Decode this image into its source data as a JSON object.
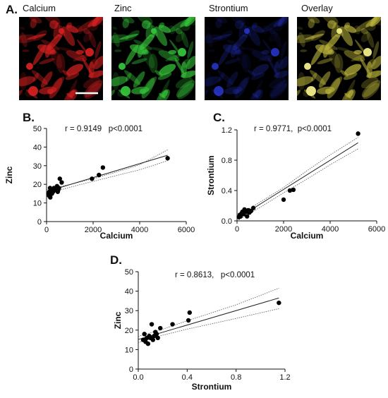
{
  "panels": {
    "a": {
      "letter": "A.",
      "labels": [
        "Calcium",
        "Zinc",
        "Strontium",
        "Overlay"
      ],
      "colors": [
        "#d42020",
        "#35c23a",
        "#2a3be0",
        "#b9b23a"
      ]
    },
    "b": {
      "letter": "B."
    },
    "c": {
      "letter": "C."
    },
    "d": {
      "letter": "D."
    }
  },
  "chart_data": [
    {
      "id": "B",
      "type": "scatter",
      "xlabel": "Calcium",
      "ylabel": "Zinc",
      "annotation": "r = 0.9149   p<0.0001",
      "xlim": [
        0,
        6000
      ],
      "ylim": [
        0,
        50
      ],
      "xticks": [
        0,
        2000,
        4000,
        6000
      ],
      "yticks": [
        0,
        10,
        20,
        30,
        40,
        50
      ],
      "xtick_labels": [
        "0",
        "2000",
        "4000",
        "6000"
      ],
      "ytick_labels": [
        "0",
        "10",
        "20",
        "30",
        "40",
        "50"
      ],
      "points": [
        [
          80,
          15
        ],
        [
          100,
          14
        ],
        [
          120,
          16
        ],
        [
          150,
          18
        ],
        [
          160,
          13
        ],
        [
          200,
          17
        ],
        [
          230,
          15
        ],
        [
          280,
          16
        ],
        [
          320,
          18
        ],
        [
          400,
          17
        ],
        [
          450,
          19
        ],
        [
          480,
          16
        ],
        [
          500,
          17
        ],
        [
          530,
          18
        ],
        [
          570,
          23
        ],
        [
          650,
          21
        ],
        [
          1950,
          23
        ],
        [
          2250,
          25
        ],
        [
          2420,
          29
        ],
        [
          5200,
          34
        ]
      ],
      "fit": {
        "x": [
          0,
          5200
        ],
        "y": [
          16.1,
          35.6
        ]
      },
      "ci_upper": {
        "x": [
          0,
          1000,
          2000,
          3000,
          4000,
          5200
        ],
        "y": [
          17.2,
          19.9,
          23.0,
          26.6,
          30.5,
          38.5
        ]
      },
      "ci_lower": {
        "x": [
          0,
          1000,
          2000,
          3000,
          4000,
          5200
        ],
        "y": [
          15.0,
          18.4,
          21.6,
          24.7,
          27.8,
          32.7
        ]
      }
    },
    {
      "id": "C",
      "type": "scatter",
      "xlabel": "Calcium",
      "ylabel": "Strontium",
      "annotation": "r = 0.9771,  p<0.0001",
      "xlim": [
        0,
        6000
      ],
      "ylim": [
        0,
        1.2
      ],
      "xticks": [
        0,
        2000,
        4000,
        6000
      ],
      "yticks": [
        0.0,
        0.4,
        0.8,
        1.2
      ],
      "xtick_labels": [
        "0",
        "2000",
        "4000",
        "6000"
      ],
      "ytick_labels": [
        "0.0",
        "0.4",
        "0.8",
        "1.2"
      ],
      "points": [
        [
          80,
          0.05
        ],
        [
          120,
          0.08
        ],
        [
          150,
          0.06
        ],
        [
          200,
          0.1
        ],
        [
          230,
          0.12
        ],
        [
          280,
          0.09
        ],
        [
          320,
          0.15
        ],
        [
          400,
          0.12
        ],
        [
          430,
          0.06
        ],
        [
          480,
          0.14
        ],
        [
          530,
          0.11
        ],
        [
          600,
          0.13
        ],
        [
          700,
          0.17
        ],
        [
          2000,
          0.28
        ],
        [
          2270,
          0.4
        ],
        [
          2420,
          0.41
        ],
        [
          5200,
          1.15
        ]
      ],
      "fit": {
        "x": [
          0,
          5200
        ],
        "y": [
          0.03,
          1.03
        ]
      },
      "ci_upper": {
        "x": [
          0,
          1000,
          2000,
          3000,
          4000,
          5200
        ],
        "y": [
          0.06,
          0.25,
          0.44,
          0.66,
          0.87,
          1.1
        ]
      },
      "ci_lower": {
        "x": [
          0,
          1000,
          2000,
          3000,
          4000,
          5200
        ],
        "y": [
          0.0,
          0.18,
          0.37,
          0.55,
          0.74,
          0.95
        ]
      }
    },
    {
      "id": "D",
      "type": "scatter",
      "xlabel": "Strontium",
      "ylabel": "Zinc",
      "annotation": "r = 0.8613,   p<0.0001",
      "xlim": [
        0,
        1.2
      ],
      "ylim": [
        0,
        50
      ],
      "xticks": [
        0.0,
        0.4,
        0.8,
        1.2
      ],
      "yticks": [
        0,
        10,
        20,
        30,
        40,
        50
      ],
      "xtick_labels": [
        "0.0",
        "0.4",
        "0.8",
        "1.2"
      ],
      "ytick_labels": [
        "0",
        "10",
        "20",
        "30",
        "40",
        "50"
      ],
      "points": [
        [
          0.04,
          15
        ],
        [
          0.05,
          18
        ],
        [
          0.06,
          14
        ],
        [
          0.07,
          16
        ],
        [
          0.08,
          13
        ],
        [
          0.09,
          17
        ],
        [
          0.1,
          16
        ],
        [
          0.11,
          23
        ],
        [
          0.12,
          15
        ],
        [
          0.13,
          17
        ],
        [
          0.14,
          19
        ],
        [
          0.15,
          18
        ],
        [
          0.16,
          16
        ],
        [
          0.18,
          21
        ],
        [
          0.28,
          23
        ],
        [
          0.41,
          25
        ],
        [
          0.42,
          29
        ],
        [
          1.15,
          34
        ]
      ],
      "fit": {
        "x": [
          0,
          1.15
        ],
        "y": [
          15.2,
          36.5
        ]
      },
      "ci_upper": {
        "x": [
          0,
          0.2,
          0.4,
          0.8,
          1.15
        ],
        "y": [
          16.8,
          20.5,
          24.8,
          33.0,
          41.5
        ]
      },
      "ci_lower": {
        "x": [
          0,
          0.2,
          0.4,
          0.8,
          1.15
        ],
        "y": [
          13.6,
          17.4,
          20.5,
          26.0,
          31.0
        ]
      }
    }
  ]
}
